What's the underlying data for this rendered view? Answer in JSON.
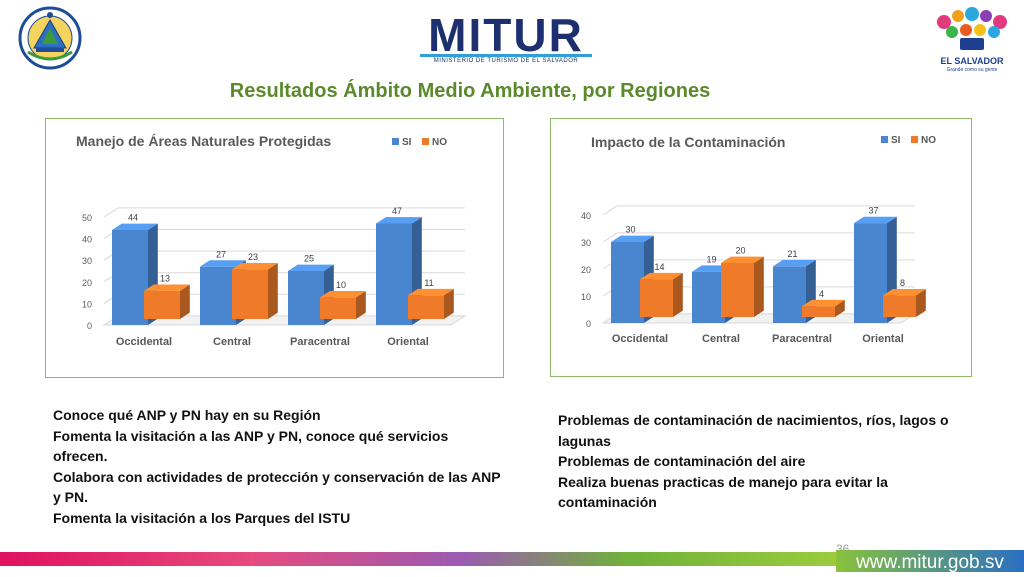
{
  "header": {
    "brand_name": "MITUR",
    "brand_subtitle": "MINISTERIO DE TURISMO DE EL SALVADOR",
    "country_logo_name": "EL SALVADOR",
    "country_logo_tagline": "Grande como su gente",
    "seal_text": "REPUBLICA DE EL SALVADOR EN LA AMERICA CENTRAL"
  },
  "page_title": "Resultados Ámbito Medio Ambiente, por Regiones",
  "chart_data": [
    {
      "type": "bar",
      "title": "Manejo de Áreas Naturales Protegidas",
      "categories": [
        "Occidental",
        "Central",
        "Paracentral",
        "Oriental"
      ],
      "series": [
        {
          "name": "SI",
          "values": [
            44,
            27,
            25,
            47
          ],
          "color": "#4a86d0"
        },
        {
          "name": "NO",
          "values": [
            13,
            23,
            10,
            11
          ],
          "color": "#ee7a2a"
        }
      ],
      "yticks": [
        "0",
        "10",
        "20",
        "30",
        "40",
        "50"
      ],
      "ylim": [
        0,
        50
      ],
      "legend": "top-right",
      "grid": true
    },
    {
      "type": "bar",
      "title": "Impacto de la Contaminación",
      "categories": [
        "Occidental",
        "Central",
        "Paracentral",
        "Oriental"
      ],
      "series": [
        {
          "name": "SI",
          "values": [
            30,
            19,
            21,
            37
          ],
          "color": "#4a86d0"
        },
        {
          "name": "NO",
          "values": [
            14,
            20,
            4,
            8
          ],
          "color": "#ee7a2a"
        }
      ],
      "yticks": [
        "0",
        "10",
        "20",
        "30",
        "40"
      ],
      "ylim": [
        0,
        40
      ],
      "legend": "top-right",
      "grid": true
    }
  ],
  "bullets_left": [
    "Conoce qué ANP y PN hay en su Región",
    "Fomenta la visitación a las ANP y PN, conoce qué servicios ofrecen.",
    "Colabora con actividades de protección y conservación de las ANP y PN.",
    "Fomenta la visitación a los Parques del ISTU"
  ],
  "bullets_right": [
    "Problemas de contaminación de nacimientos, ríos, lagos o lagunas",
    "Problemas de contaminación del aire",
    "Realiza buenas practicas de manejo para evitar la contaminación"
  ],
  "footer": {
    "page_number": "36",
    "url": "www.mitur.gob.sv"
  }
}
